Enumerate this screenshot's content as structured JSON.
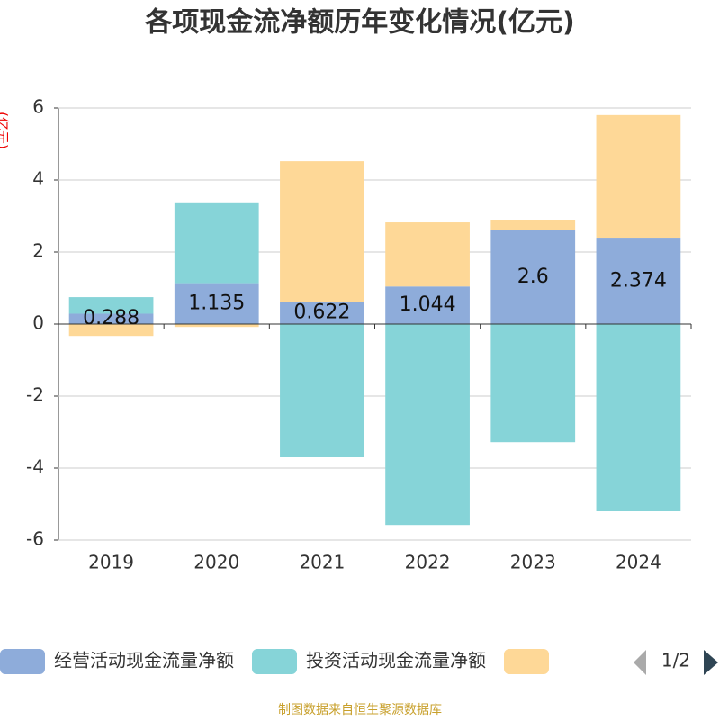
{
  "chart_data": {
    "type": "bar",
    "stacked": true,
    "title": "各项现金流净额历年变化情况(亿元)",
    "y_label": "(亿元)",
    "categories": [
      "2019",
      "2020",
      "2021",
      "2022",
      "2023",
      "2024"
    ],
    "series": [
      {
        "name": "经营活动现金流量净额",
        "color": "#8eacda",
        "values": [
          0.288,
          1.135,
          0.622,
          1.044,
          2.6,
          2.374
        ],
        "data_labels": true
      },
      {
        "name": "投资活动现金流量净额",
        "color": "#86d4d8",
        "values": [
          0.46,
          2.22,
          -3.7,
          -5.58,
          -3.28,
          -5.2
        ]
      },
      {
        "color": "#fed897",
        "values": [
          -0.33,
          -0.08,
          3.9,
          1.78,
          0.28,
          3.43
        ]
      }
    ],
    "ylim": [
      -6,
      6
    ],
    "yticks": [
      -6,
      -4,
      -2,
      0,
      2,
      4,
      6
    ],
    "grid": true,
    "legend_position": "bottom",
    "legend_page": "1/2",
    "source": "制图数据来自恒生聚源数据库"
  }
}
